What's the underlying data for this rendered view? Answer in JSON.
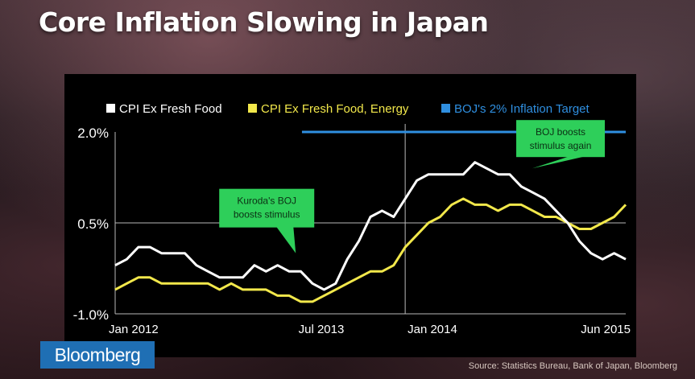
{
  "title": "Core Inflation Slowing in Japan",
  "logo": "Bloomberg",
  "source": "Source: Statistics Bureau, Bank of Japan, Bloomberg",
  "chart_data": {
    "type": "line",
    "ytick_labels": [
      "2.0%",
      "0.5%",
      "-1.0%"
    ],
    "yticks": [
      2.0,
      0.5,
      -1.0
    ],
    "ylim": [
      -1.0,
      2.0
    ],
    "xtick_labels": [
      "Jan 2012",
      "Jul 2013",
      "Jan 2014",
      "Jun 2015"
    ],
    "xtick_positions": [
      0,
      18,
      24,
      41
    ],
    "xlim": [
      0,
      41
    ],
    "x_start": "Jan 2012",
    "grid": true,
    "legend": "top",
    "series": [
      {
        "name": "CPI Ex Fresh Food",
        "color": "#ffffff",
        "values": [
          -0.2,
          -0.1,
          0.1,
          0.1,
          0.0,
          0.0,
          0.0,
          -0.2,
          -0.3,
          -0.4,
          -0.4,
          -0.4,
          -0.2,
          -0.3,
          -0.2,
          -0.3,
          -0.3,
          -0.5,
          -0.6,
          -0.5,
          -0.1,
          0.2,
          0.6,
          0.7,
          0.6,
          0.9,
          1.2,
          1.3,
          1.3,
          1.3,
          1.3,
          1.5,
          1.4,
          1.3,
          1.3,
          1.1,
          1.0,
          0.9,
          0.7,
          0.5,
          0.2,
          0.0,
          -0.1,
          0.0,
          -0.1
        ]
      },
      {
        "name": "CPI Ex Fresh Food, Energy",
        "color": "#f2e84b",
        "values": [
          -0.6,
          -0.5,
          -0.4,
          -0.4,
          -0.5,
          -0.5,
          -0.5,
          -0.5,
          -0.5,
          -0.6,
          -0.5,
          -0.6,
          -0.6,
          -0.6,
          -0.7,
          -0.7,
          -0.8,
          -0.8,
          -0.7,
          -0.6,
          -0.5,
          -0.4,
          -0.3,
          -0.3,
          -0.2,
          0.1,
          0.3,
          0.5,
          0.6,
          0.8,
          0.9,
          0.8,
          0.8,
          0.7,
          0.8,
          0.8,
          0.7,
          0.6,
          0.6,
          0.5,
          0.4,
          0.4,
          0.5,
          0.6,
          0.8
        ]
      },
      {
        "name": "BOJ's 2% Inflation Target",
        "color": "#2f8fe0",
        "x_from": 15,
        "value": 2.0
      }
    ],
    "annotations": [
      {
        "text": "Kuroda's BOJ boosts stimulus",
        "x": 14.5,
        "y": 0.0
      },
      {
        "text": "BOJ boosts stimulus again",
        "x": 33.5,
        "y": 1.4
      }
    ]
  }
}
